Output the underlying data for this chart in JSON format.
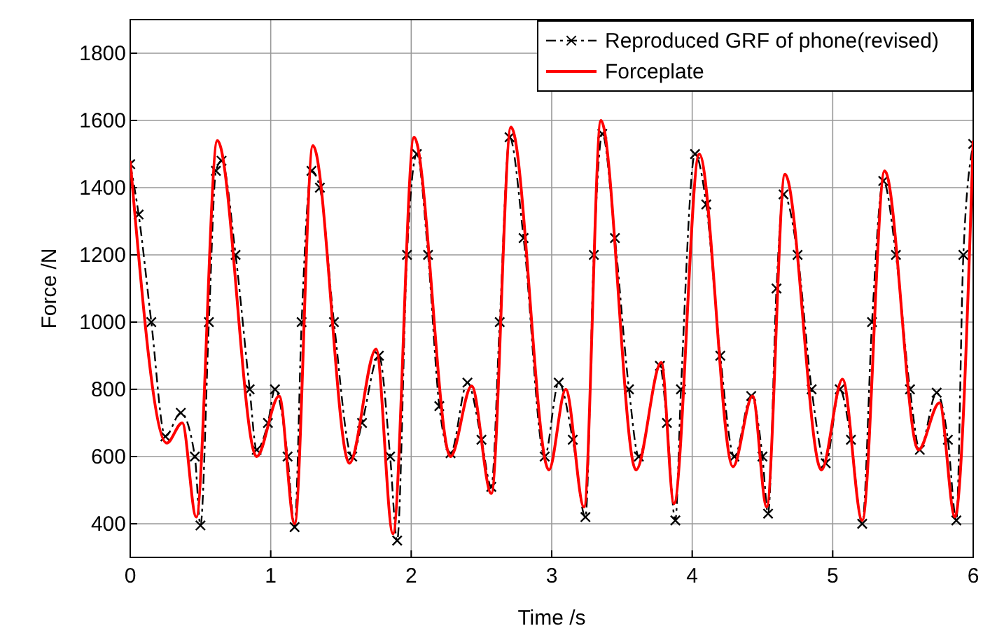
{
  "chart_data": {
    "type": "line",
    "xlabel": "Time /s",
    "ylabel": "Force /N",
    "xlim": [
      0,
      6
    ],
    "ylim": [
      300,
      1900
    ],
    "xticks": [
      0,
      1,
      2,
      3,
      4,
      5,
      6
    ],
    "yticks": [
      400,
      600,
      800,
      1000,
      1200,
      1400,
      1600,
      1800
    ],
    "grid": true,
    "legend": "top right",
    "series": [
      {
        "name": "Reproduced GRF of phone(revised)",
        "color": "#000000",
        "marker": "cross",
        "line_style": "dashed",
        "x": [
          0,
          0.06,
          0.15,
          0.25,
          0.36,
          0.46,
          0.5,
          0.56,
          0.61,
          0.65,
          0.75,
          0.85,
          0.9,
          0.98,
          1.03,
          1.12,
          1.17,
          1.22,
          1.29,
          1.35,
          1.45,
          1.58,
          1.65,
          1.77,
          1.85,
          1.9,
          1.97,
          2.04,
          2.12,
          2.2,
          2.28,
          2.4,
          2.5,
          2.57,
          2.63,
          2.7,
          2.8,
          2.95,
          3.05,
          3.15,
          3.24,
          3.3,
          3.36,
          3.45,
          3.55,
          3.62,
          3.77,
          3.82,
          3.88,
          3.92,
          4.02,
          4.1,
          4.2,
          4.3,
          4.42,
          4.5,
          4.54,
          4.6,
          4.65,
          4.75,
          4.85,
          4.95,
          5.05,
          5.13,
          5.21,
          5.28,
          5.36,
          5.45,
          5.55,
          5.62,
          5.74,
          5.82,
          5.88,
          5.93,
          6.0
        ],
        "values": [
          1470,
          1320,
          1000,
          660,
          730,
          600,
          395,
          1000,
          1450,
          1480,
          1200,
          800,
          620,
          700,
          800,
          600,
          390,
          1000,
          1450,
          1400,
          1000,
          600,
          700,
          900,
          600,
          350,
          1200,
          1500,
          1200,
          750,
          610,
          820,
          650,
          510,
          1000,
          1550,
          1250,
          600,
          820,
          650,
          420,
          1200,
          1560,
          1250,
          800,
          600,
          870,
          700,
          410,
          800,
          1500,
          1350,
          900,
          600,
          780,
          600,
          430,
          1100,
          1380,
          1200,
          800,
          580,
          800,
          650,
          400,
          1000,
          1420,
          1200,
          800,
          620,
          790,
          650,
          410,
          1200,
          1530
        ]
      },
      {
        "name": "Forceplate",
        "color": "#ff0000",
        "marker": "none",
        "line_style": "solid",
        "x": [
          0,
          0.26,
          0.37,
          0.47,
          0.62,
          0.9,
          1.06,
          1.17,
          1.3,
          1.56,
          1.75,
          1.87,
          2.02,
          2.28,
          2.43,
          2.57,
          2.71,
          2.98,
          3.1,
          3.23,
          3.35,
          3.6,
          3.78,
          3.87,
          4.05,
          4.29,
          4.43,
          4.53,
          4.66,
          4.92,
          5.07,
          5.21,
          5.37,
          5.61,
          5.76,
          5.87,
          6.0
        ],
        "values": [
          1480,
          640,
          700,
          420,
          1540,
          600,
          780,
          400,
          1525,
          580,
          920,
          370,
          1550,
          600,
          810,
          490,
          1580,
          560,
          800,
          450,
          1600,
          560,
          880,
          460,
          1500,
          570,
          780,
          450,
          1440,
          560,
          830,
          410,
          1450,
          620,
          760,
          420,
          1540
        ]
      }
    ]
  }
}
